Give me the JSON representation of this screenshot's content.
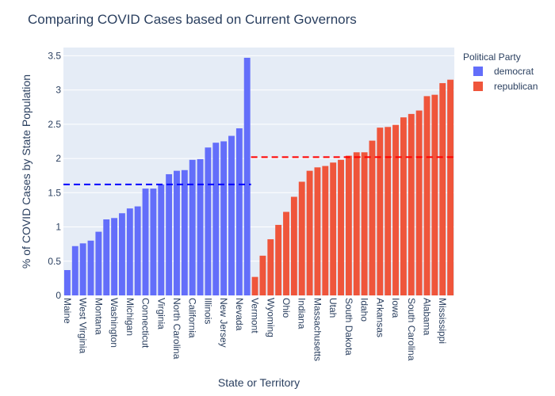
{
  "chart_data": {
    "type": "bar",
    "title": "Comparing COVID Cases based on Current Governors",
    "xlabel": "State or Territory",
    "ylabel": "% of COVID Cases by State Population",
    "ylim": [
      0,
      3.62
    ],
    "yticks": [
      0,
      0.5,
      1,
      1.5,
      2,
      2.5,
      3,
      3.5
    ],
    "ytick_labels": [
      "0",
      "0.5",
      "1",
      "1.5",
      "2",
      "2.5",
      "3",
      "3.5"
    ],
    "grid": true,
    "legend": {
      "title": "Political Party",
      "placement": "top-right",
      "entries": [
        {
          "name": "democrat",
          "color": "#636efa"
        },
        {
          "name": "republican",
          "color": "#ef553b"
        }
      ]
    },
    "series": [
      {
        "name": "democrat",
        "color": "#636efa",
        "mean": 1.62,
        "categories": [
          "Maine",
          "",
          "West Virginia",
          "",
          "Montana",
          "",
          "Washington",
          "",
          "Michigan",
          "",
          "Connecticut",
          "",
          "Virginia",
          "",
          "North Carolina",
          "",
          "California",
          "",
          "Illinois",
          "",
          "New Jersey",
          "",
          "Nevada",
          ""
        ],
        "values": [
          0.37,
          0.72,
          0.76,
          0.8,
          0.93,
          1.11,
          1.13,
          1.2,
          1.27,
          1.3,
          1.56,
          1.56,
          1.62,
          1.77,
          1.82,
          1.83,
          1.98,
          1.99,
          2.16,
          2.23,
          2.25,
          2.33,
          2.44,
          3.47
        ]
      },
      {
        "name": "republican",
        "color": "#ef553b",
        "mean": 2.02,
        "categories": [
          "Vermont",
          "",
          "Wyoming",
          "",
          "Ohio",
          "",
          "Indiana",
          "",
          "Massachusetts",
          "",
          "Utah",
          "",
          "South Dakota",
          "",
          "Idaho",
          "",
          "Arkansas",
          "",
          "Iowa",
          "",
          "South Carolina",
          "",
          "Alabama",
          "",
          "Mississippi",
          ""
        ],
        "values": [
          0.27,
          0.58,
          0.82,
          1.03,
          1.22,
          1.44,
          1.66,
          1.82,
          1.87,
          1.89,
          1.94,
          1.98,
          2.04,
          2.09,
          2.09,
          2.26,
          2.45,
          2.46,
          2.49,
          2.6,
          2.65,
          2.7,
          2.91,
          2.93,
          3.1,
          3.15
        ]
      }
    ]
  }
}
